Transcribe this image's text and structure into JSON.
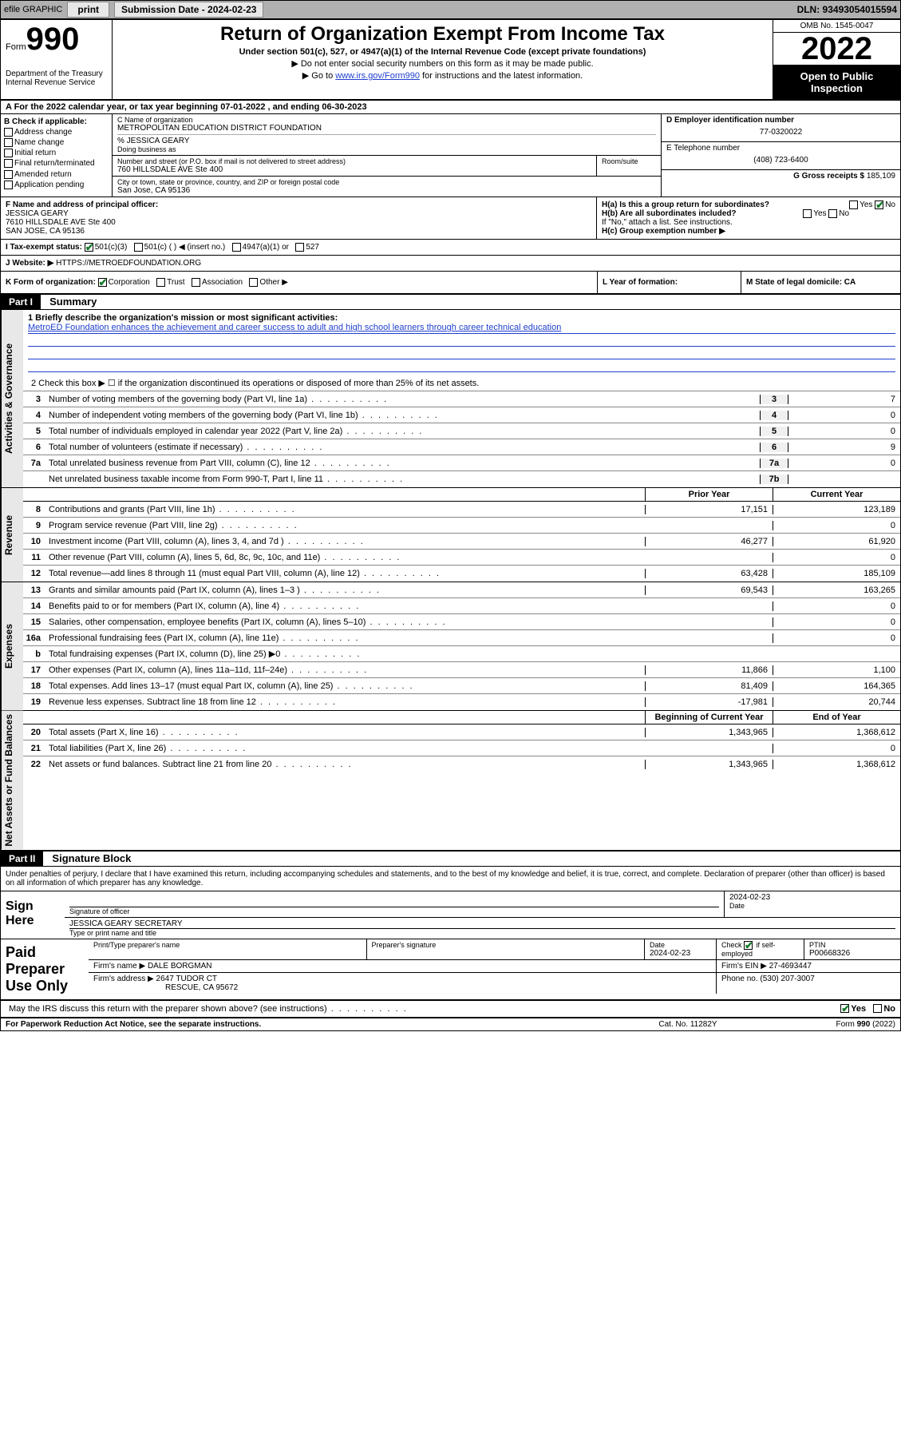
{
  "topbar": {
    "efile_label": "efile GRAPHIC",
    "print_btn": "print",
    "submission_label": "Submission Date - 2024-02-23",
    "dln": "DLN: 93493054015594"
  },
  "header": {
    "form_word": "Form",
    "form_num": "990",
    "dept": "Department of the Treasury",
    "irs": "Internal Revenue Service",
    "title": "Return of Organization Exempt From Income Tax",
    "subtitle": "Under section 501(c), 527, or 4947(a)(1) of the Internal Revenue Code (except private foundations)",
    "note1": "▶ Do not enter social security numbers on this form as it may be made public.",
    "note2_pre": "▶ Go to ",
    "note2_link": "www.irs.gov/Form990",
    "note2_post": " for instructions and the latest information.",
    "omb": "OMB No. 1545-0047",
    "year": "2022",
    "open": "Open to Public Inspection"
  },
  "row_a": "A For the 2022 calendar year, or tax year beginning 07-01-2022   , and ending 06-30-2023",
  "col_b": {
    "title": "B Check if applicable:",
    "items": [
      "Address change",
      "Name change",
      "Initial return",
      "Final return/terminated",
      "Amended return",
      "Application pending"
    ]
  },
  "col_c": {
    "c_label": "C Name of organization",
    "org_name": "METROPOLITAN EDUCATION DISTRICT FOUNDATION",
    "pct_name": "% JESSICA GEARY",
    "dba_label": "Doing business as",
    "addr_label": "Number and street (or P.O. box if mail is not delivered to street address)",
    "addr": "760 HILLSDALE AVE Ste 400",
    "room_label": "Room/suite",
    "city_label": "City or town, state or province, country, and ZIP or foreign postal code",
    "city": "San Jose, CA  95136"
  },
  "col_defg": {
    "d_label": "D Employer identification number",
    "ein": "77-0320022",
    "e_label": "E Telephone number",
    "phone": "(408) 723-6400",
    "g_label": "G Gross receipts $",
    "gross": "185,109"
  },
  "row_f": {
    "label": "F  Name and address of principal officer:",
    "name": "JESSICA GEARY",
    "addr1": "7610 HILLSDALE AVE Ste 400",
    "addr2": "SAN JOSE, CA  95136"
  },
  "row_h": {
    "ha": "H(a)  Is this a group return for subordinates?",
    "ha_yes": "Yes",
    "ha_no": "No",
    "hb": "H(b)  Are all subordinates included?",
    "hb_yes": "Yes",
    "hb_no": "No",
    "hb_note": "If \"No,\" attach a list. See instructions.",
    "hc": "H(c)  Group exemption number ▶"
  },
  "row_i": {
    "label": "I   Tax-exempt status:",
    "opt1": "501(c)(3)",
    "opt2": "501(c) (  ) ◀ (insert no.)",
    "opt3": "4947(a)(1) or",
    "opt4": "527"
  },
  "row_j": {
    "label": "J   Website: ▶",
    "url": "HTTPS://METROEDFOUNDATION.ORG"
  },
  "row_k": {
    "label": "K Form of organization:",
    "opts": [
      "Corporation",
      "Trust",
      "Association",
      "Other ▶"
    ]
  },
  "row_l": {
    "label": "L Year of formation:"
  },
  "row_m": {
    "label": "M State of legal domicile: CA"
  },
  "part1": {
    "hdr": "Part I",
    "title": "Summary",
    "side_ag": "Activities & Governance",
    "side_rev": "Revenue",
    "side_exp": "Expenses",
    "side_na": "Net Assets or Fund Balances",
    "l1_label": "1  Briefly describe the organization's mission or most significant activities:",
    "l1_text": "MetroED Foundation enhances the achievement and career success to adult and high school learners through career technical education",
    "l2": "2   Check this box ▶ ☐  if the organization discontinued its operations or disposed of more than 25% of its net assets.",
    "lines_single": [
      {
        "n": "3",
        "d": "Number of voting members of the governing body (Part VI, line 1a)",
        "box": "3",
        "v": "7"
      },
      {
        "n": "4",
        "d": "Number of independent voting members of the governing body (Part VI, line 1b)",
        "box": "4",
        "v": "0"
      },
      {
        "n": "5",
        "d": "Total number of individuals employed in calendar year 2022 (Part V, line 2a)",
        "box": "5",
        "v": "0"
      },
      {
        "n": "6",
        "d": "Total number of volunteers (estimate if necessary)",
        "box": "6",
        "v": "9"
      },
      {
        "n": "7a",
        "d": "Total unrelated business revenue from Part VIII, column (C), line 12",
        "box": "7a",
        "v": "0"
      },
      {
        "n": "",
        "d": "Net unrelated business taxable income from Form 990-T, Part I, line 11",
        "box": "7b",
        "v": ""
      }
    ],
    "hdr_prior": "Prior Year",
    "hdr_current": "Current Year",
    "rev_lines": [
      {
        "n": "8",
        "d": "Contributions and grants (Part VIII, line 1h)",
        "p": "17,151",
        "c": "123,189"
      },
      {
        "n": "9",
        "d": "Program service revenue (Part VIII, line 2g)",
        "p": "",
        "c": "0"
      },
      {
        "n": "10",
        "d": "Investment income (Part VIII, column (A), lines 3, 4, and 7d )",
        "p": "46,277",
        "c": "61,920"
      },
      {
        "n": "11",
        "d": "Other revenue (Part VIII, column (A), lines 5, 6d, 8c, 9c, 10c, and 11e)",
        "p": "",
        "c": "0"
      },
      {
        "n": "12",
        "d": "Total revenue—add lines 8 through 11 (must equal Part VIII, column (A), line 12)",
        "p": "63,428",
        "c": "185,109"
      }
    ],
    "exp_lines": [
      {
        "n": "13",
        "d": "Grants and similar amounts paid (Part IX, column (A), lines 1–3 )",
        "p": "69,543",
        "c": "163,265"
      },
      {
        "n": "14",
        "d": "Benefits paid to or for members (Part IX, column (A), line 4)",
        "p": "",
        "c": "0"
      },
      {
        "n": "15",
        "d": "Salaries, other compensation, employee benefits (Part IX, column (A), lines 5–10)",
        "p": "",
        "c": "0"
      },
      {
        "n": "16a",
        "d": "Professional fundraising fees (Part IX, column (A), line 11e)",
        "p": "",
        "c": "0"
      },
      {
        "n": "b",
        "d": "Total fundraising expenses (Part IX, column (D), line 25) ▶0",
        "p": "",
        "c": "",
        "shade": true
      },
      {
        "n": "17",
        "d": "Other expenses (Part IX, column (A), lines 11a–11d, 11f–24e)",
        "p": "11,866",
        "c": "1,100"
      },
      {
        "n": "18",
        "d": "Total expenses. Add lines 13–17 (must equal Part IX, column (A), line 25)",
        "p": "81,409",
        "c": "164,365"
      },
      {
        "n": "19",
        "d": "Revenue less expenses. Subtract line 18 from line 12",
        "p": "-17,981",
        "c": "20,744"
      }
    ],
    "hdr_begin": "Beginning of Current Year",
    "hdr_end": "End of Year",
    "na_lines": [
      {
        "n": "20",
        "d": "Total assets (Part X, line 16)",
        "p": "1,343,965",
        "c": "1,368,612"
      },
      {
        "n": "21",
        "d": "Total liabilities (Part X, line 26)",
        "p": "",
        "c": "0"
      },
      {
        "n": "22",
        "d": "Net assets or fund balances. Subtract line 21 from line 20",
        "p": "1,343,965",
        "c": "1,368,612"
      }
    ]
  },
  "part2": {
    "hdr": "Part II",
    "title": "Signature Block",
    "decl": "Under penalties of perjury, I declare that I have examined this return, including accompanying schedules and statements, and to the best of my knowledge and belief, it is true, correct, and complete. Declaration of preparer (other than officer) is based on all information of which preparer has any knowledge.",
    "sign_here": "Sign Here",
    "sig_officer": "Signature of officer",
    "sig_date": "2024-02-23",
    "date_label": "Date",
    "officer_name": "JESSICA GEARY SECRETARY",
    "type_label": "Type or print name and title",
    "paid": "Paid Preparer Use Only",
    "prep_name_label": "Print/Type preparer's name",
    "prep_sig_label": "Preparer's signature",
    "prep_date_label": "Date",
    "prep_date": "2024-02-23",
    "check_if": "Check ☑ if self-employed",
    "ptin_label": "PTIN",
    "ptin": "P00668326",
    "firm_name_label": "Firm's name    ▶",
    "firm_name": "DALE BORGMAN",
    "firm_ein_label": "Firm's EIN ▶",
    "firm_ein": "27-4693447",
    "firm_addr_label": "Firm's address ▶",
    "firm_addr1": "2647 TUDOR CT",
    "firm_addr2": "RESCUE, CA  95672",
    "phone_label": "Phone no.",
    "phone": "(530) 207-3007",
    "discuss": "May the IRS discuss this return with the preparer shown above? (see instructions)",
    "discuss_yes": "Yes",
    "discuss_no": "No"
  },
  "footer": {
    "pra": "For Paperwork Reduction Act Notice, see the separate instructions.",
    "cat": "Cat. No. 11282Y",
    "form": "Form 990 (2022)"
  }
}
